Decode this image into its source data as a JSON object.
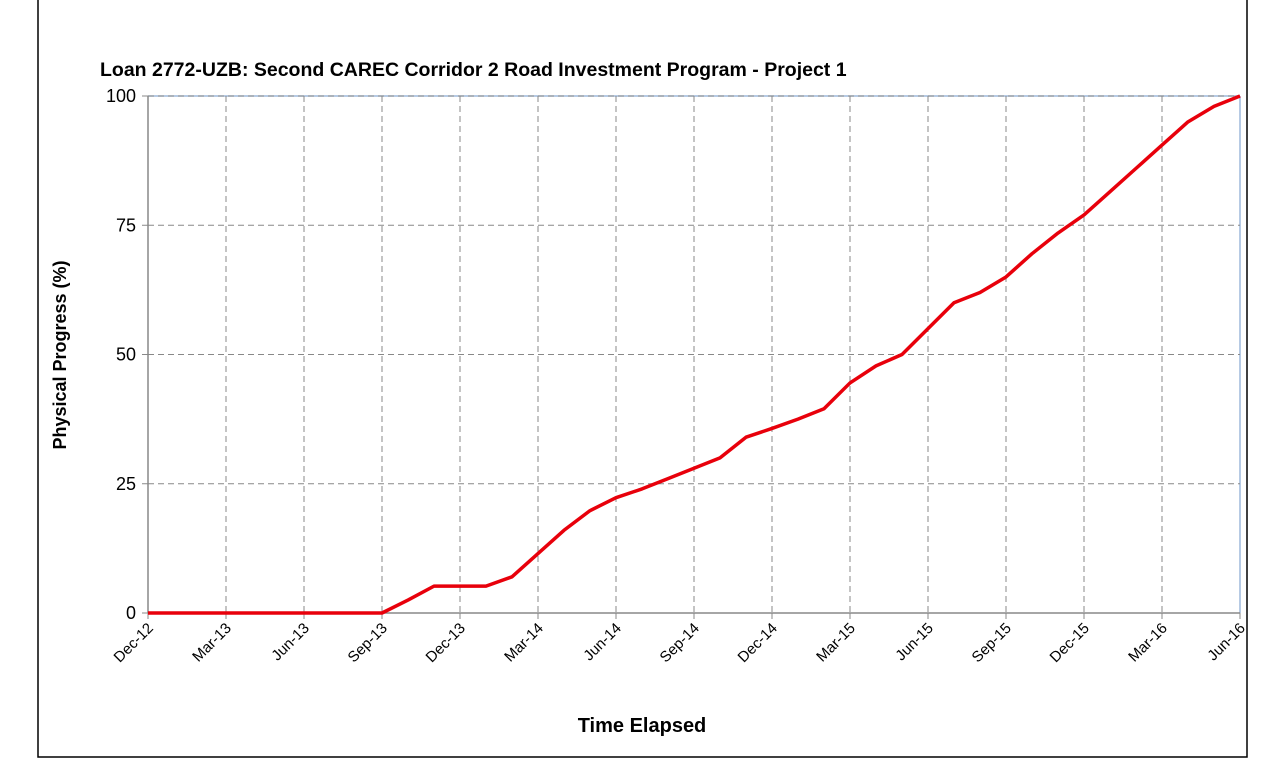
{
  "chart_data": {
    "type": "line",
    "title": "Loan 2772-UZB: Second CAREC Corridor 2 Road Investment Program - Project 1",
    "x_label": "Time Elapsed",
    "y_label": "Physical Progress (%)",
    "categories": [
      "Dec-12",
      null,
      null,
      "Mar-13",
      null,
      null,
      "Jun-13",
      null,
      null,
      "Sep-13",
      null,
      null,
      "Dec-13",
      null,
      null,
      "Mar-14",
      null,
      null,
      "Jun-14",
      null,
      null,
      "Sep-14",
      null,
      null,
      "Dec-14",
      null,
      null,
      "Mar-15",
      null,
      null,
      "Jun-15",
      null,
      null,
      "Sep-15",
      null,
      null,
      "Dec-15",
      null,
      null,
      "Mar-16",
      null,
      null,
      "Jun-16"
    ],
    "series": [
      {
        "color": "#e8000b",
        "values": [
          0,
          0,
          0,
          0,
          0,
          0,
          0,
          0,
          0,
          0,
          2.5,
          5.2,
          5.2,
          5.2,
          7,
          11.5,
          16,
          19.8,
          22.3,
          24,
          26,
          28,
          30,
          34,
          35.7,
          37.5,
          39.5,
          44.5,
          47.8,
          50,
          55,
          60,
          62,
          65,
          69.5,
          73.5,
          77,
          81.5,
          86,
          90.5,
          95,
          98,
          100
        ]
      }
    ],
    "ylim": [
      0,
      100
    ],
    "yticks": [
      0,
      25,
      50,
      75,
      100
    ],
    "grid": true
  }
}
